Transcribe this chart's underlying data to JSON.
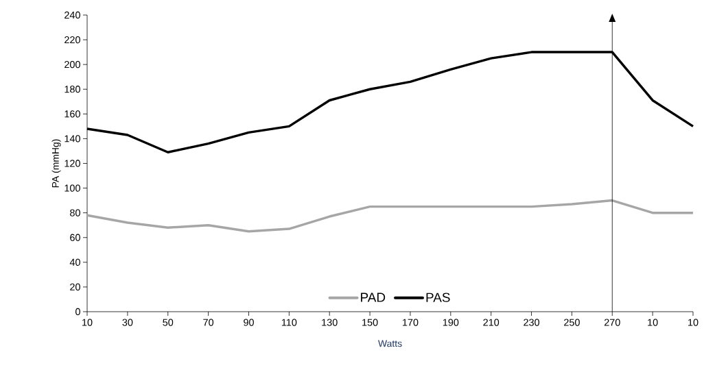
{
  "chart_data": {
    "type": "line",
    "xlabel": "Watts",
    "ylabel": "PA (mmHg)",
    "categories": [
      "10",
      "30",
      "50",
      "70",
      "90",
      "110",
      "130",
      "150",
      "170",
      "190",
      "210",
      "230",
      "250",
      "270",
      "10",
      "10"
    ],
    "series": [
      {
        "name": "PAD",
        "color": "#a6a6a6",
        "values": [
          78,
          72,
          68,
          70,
          65,
          67,
          77,
          85,
          85,
          85,
          85,
          85,
          87,
          90,
          80,
          80
        ]
      },
      {
        "name": "PAS",
        "color": "#000000",
        "values": [
          148,
          143,
          129,
          136,
          145,
          150,
          171,
          180,
          186,
          196,
          205,
          210,
          210,
          210,
          171,
          150
        ]
      }
    ],
    "ylim": [
      0,
      240
    ],
    "yticks": [
      0,
      20,
      40,
      60,
      80,
      100,
      120,
      140,
      160,
      180,
      200,
      220,
      240
    ],
    "ref_lines": [
      {
        "axis": "x",
        "value": "270",
        "color": "#000000"
      }
    ],
    "grid": false,
    "legend": "bottom",
    "marker": "none",
    "line_style": "solid"
  }
}
